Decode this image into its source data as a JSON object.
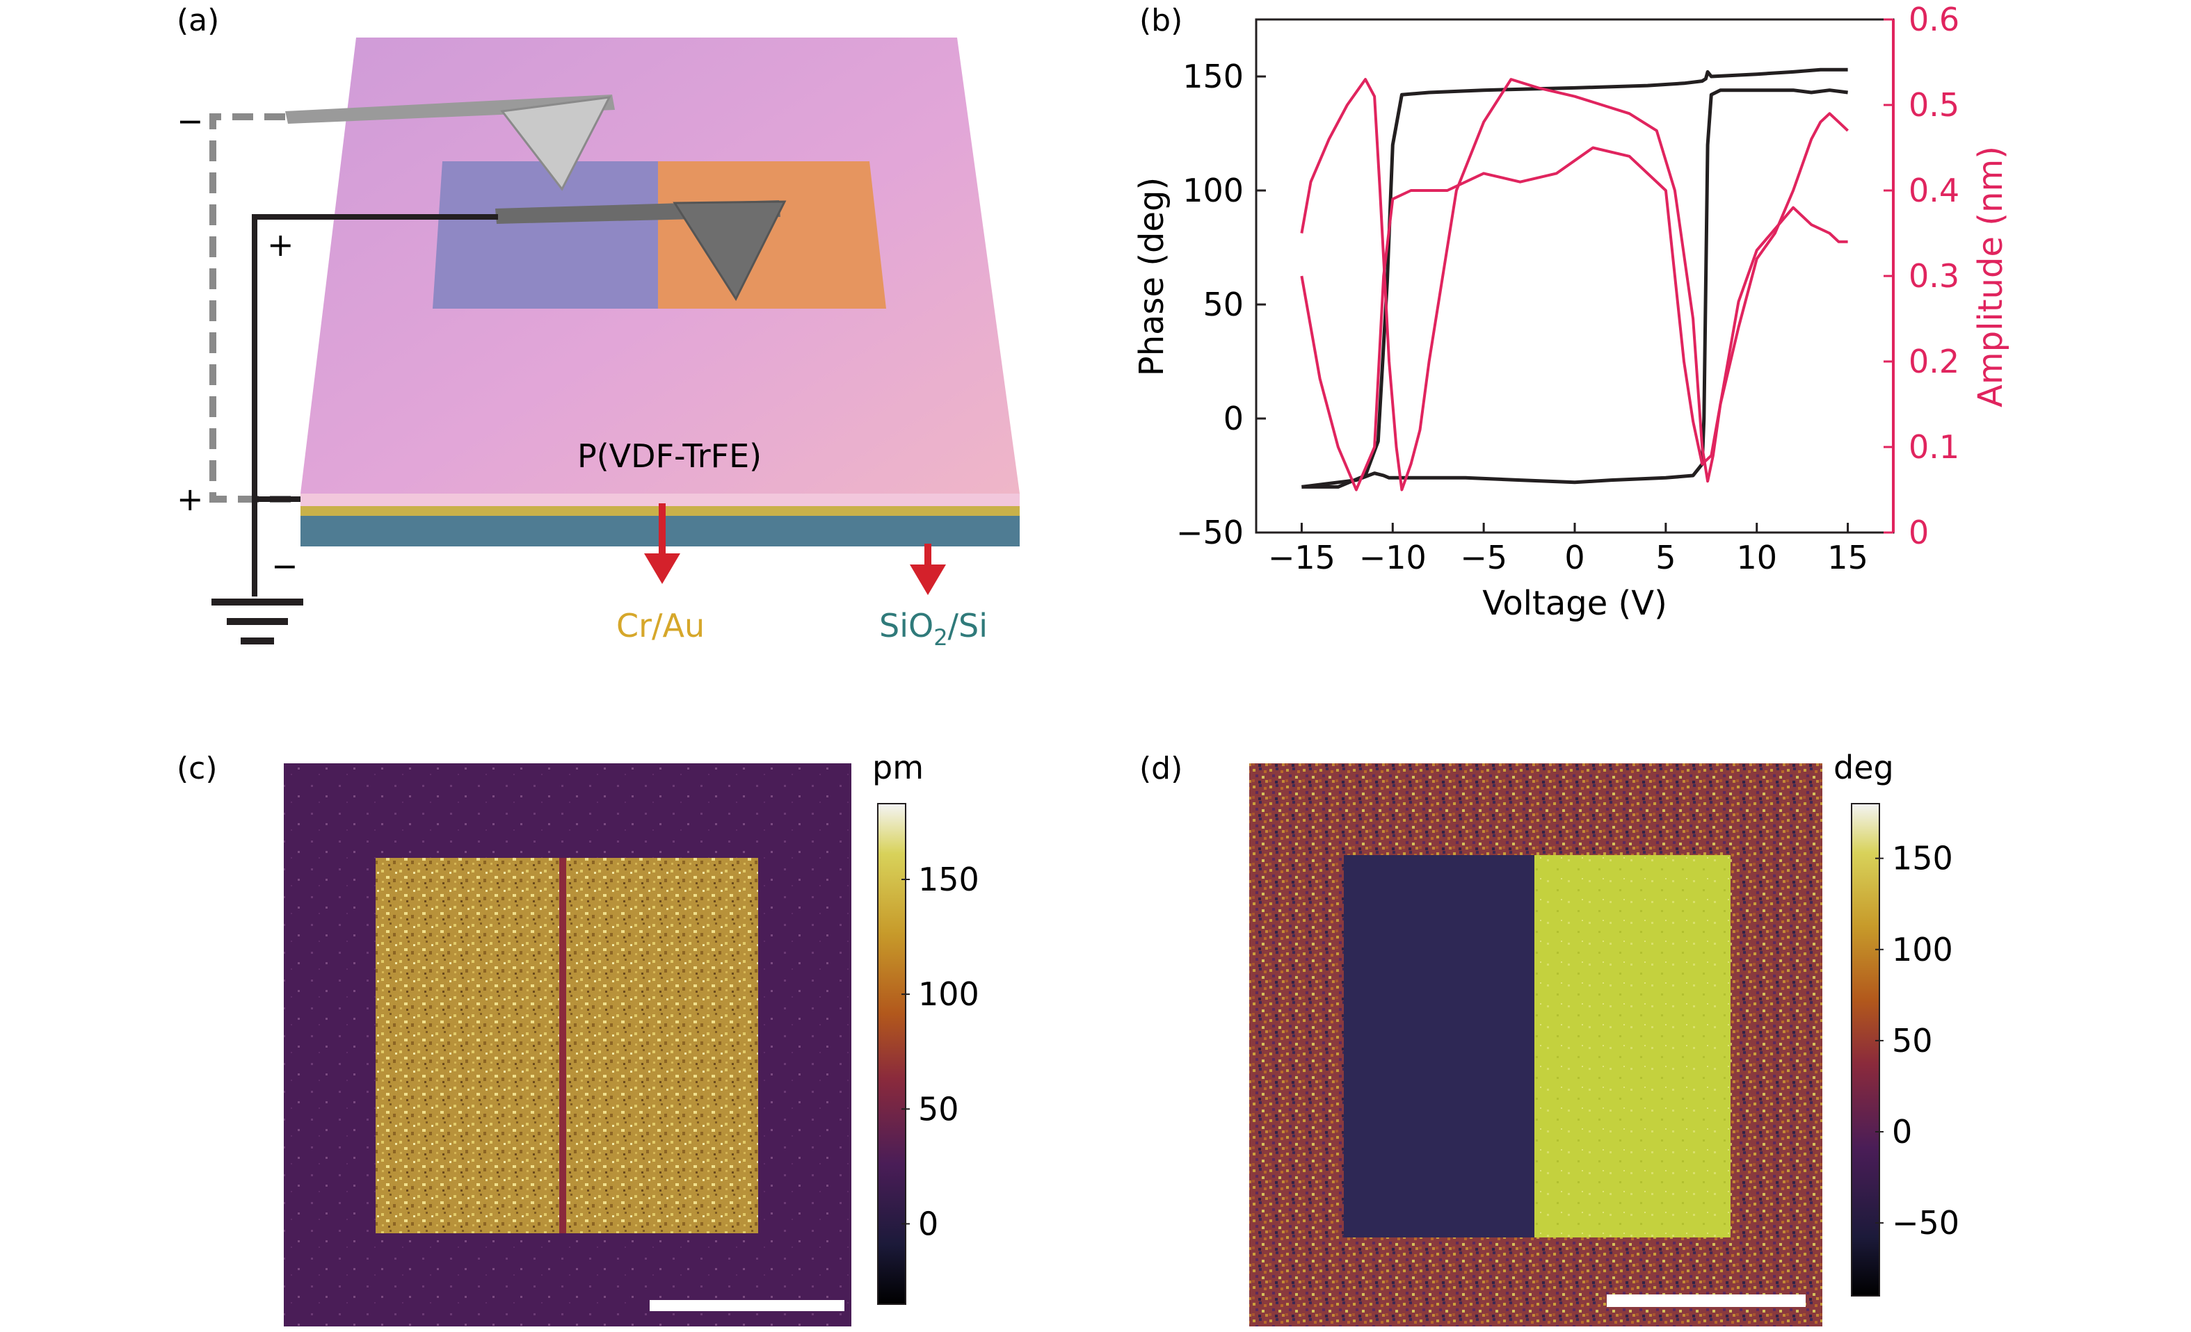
{
  "panels": {
    "a": {
      "label": "(a)",
      "film_label": "P(VDF-TrFE)",
      "electrode_label": "Cr/Au",
      "substrate_label_main": "SiO",
      "substrate_label_sub": "2",
      "substrate_label_tail": "/Si",
      "signs": {
        "upper_left": "−",
        "plus_mid": "+",
        "plus_left": "+",
        "minus_bottom": "−"
      },
      "colors": {
        "film": "#d9a3d6",
        "left_domain": "#8f88c4",
        "right_domain": "#e6955f",
        "electrode": "#c9b14a",
        "substrate": "#4f7c93",
        "arrow": "#d4212b"
      }
    },
    "b": {
      "label": "(b)",
      "colors": {
        "phase": "#231f20",
        "amplitude": "#e0245e"
      }
    },
    "c": {
      "label": "(c)",
      "unit": "pm",
      "colorbar_ticks": [
        "150",
        "100",
        "50",
        "0"
      ]
    },
    "d": {
      "label": "(d)",
      "unit": "deg",
      "colorbar_ticks": [
        "150",
        "100",
        "50",
        "0",
        "−50"
      ]
    }
  },
  "chart_data": {
    "type": "line",
    "xlabel": "Voltage (V)",
    "ylabel": "Phase (deg)",
    "y2label": "Amplitude (nm)",
    "xlim": [
      -17.5,
      17.5
    ],
    "ylim": [
      -50,
      175
    ],
    "y2lim": [
      0,
      0.6
    ],
    "xticks": [
      "−15",
      "−10",
      "−5",
      "0",
      "5",
      "10",
      "15"
    ],
    "yticks": [
      "−50",
      "0",
      "50",
      "100",
      "150"
    ],
    "y2ticks": [
      "0",
      "0.1",
      "0.2",
      "0.3",
      "0.4",
      "0.5",
      "0.6"
    ],
    "series": [
      {
        "axis": "left",
        "color": "#231f20",
        "x": [
          -15,
          -13,
          -11.5,
          -10.8,
          -10.3,
          -10,
          -9.5,
          -8,
          -5,
          0,
          4,
          6,
          7,
          7.2,
          7.3,
          7.5,
          10,
          12,
          13.5,
          15
        ],
        "y": [
          -30,
          -30,
          -25,
          -10,
          60,
          120,
          142,
          143,
          144,
          145,
          146,
          147,
          148,
          149,
          152,
          150,
          151,
          152,
          153,
          153
        ]
      },
      {
        "axis": "left",
        "color": "#231f20",
        "x": [
          15,
          14,
          13,
          12,
          10,
          8.5,
          8,
          7.5,
          7.3,
          7.1,
          7,
          6.5,
          5,
          2,
          0,
          -3,
          -6,
          -9,
          -10.2,
          -10.5,
          -11,
          -12,
          -13,
          -14,
          -15
        ],
        "y": [
          143,
          144,
          143,
          144,
          144,
          144,
          144,
          142,
          120,
          0,
          -20,
          -25,
          -26,
          -27,
          -28,
          -27,
          -26,
          -26,
          -26,
          -25,
          -24,
          -27,
          -28,
          -29,
          -30
        ]
      },
      {
        "axis": "right",
        "color": "#e0245e",
        "x": [
          -15,
          -14.5,
          -13.5,
          -12.5,
          -11.5,
          -11,
          -10.7,
          -10.2,
          -9.8,
          -9.5,
          -9,
          -8.5,
          -8,
          -6.5,
          -5,
          -3.5,
          -2,
          0,
          1.5,
          3,
          4.5,
          5.5,
          6.5,
          7,
          7.3,
          7.6,
          8,
          9,
          10,
          12,
          13,
          14,
          14.5,
          15
        ],
        "y": [
          0.35,
          0.41,
          0.46,
          0.5,
          0.53,
          0.51,
          0.4,
          0.2,
          0.1,
          0.05,
          0.08,
          0.12,
          0.2,
          0.4,
          0.48,
          0.53,
          0.52,
          0.51,
          0.5,
          0.49,
          0.47,
          0.4,
          0.25,
          0.1,
          0.06,
          0.09,
          0.15,
          0.27,
          0.33,
          0.38,
          0.36,
          0.35,
          0.34,
          0.34
        ]
      },
      {
        "axis": "right",
        "color": "#e0245e",
        "x": [
          15,
          14.5,
          14,
          13.5,
          13,
          12,
          11,
          10,
          9,
          8,
          7.5,
          7,
          6.5,
          6,
          5,
          3,
          1,
          -1,
          -3,
          -5,
          -7,
          -9,
          -10,
          -10.5,
          -11,
          -12,
          -13,
          -14,
          -15
        ],
        "y": [
          0.47,
          0.48,
          0.49,
          0.48,
          0.46,
          0.4,
          0.35,
          0.32,
          0.24,
          0.15,
          0.09,
          0.08,
          0.13,
          0.2,
          0.4,
          0.44,
          0.45,
          0.42,
          0.41,
          0.42,
          0.4,
          0.4,
          0.39,
          0.3,
          0.1,
          0.05,
          0.1,
          0.18,
          0.3
        ]
      }
    ]
  }
}
